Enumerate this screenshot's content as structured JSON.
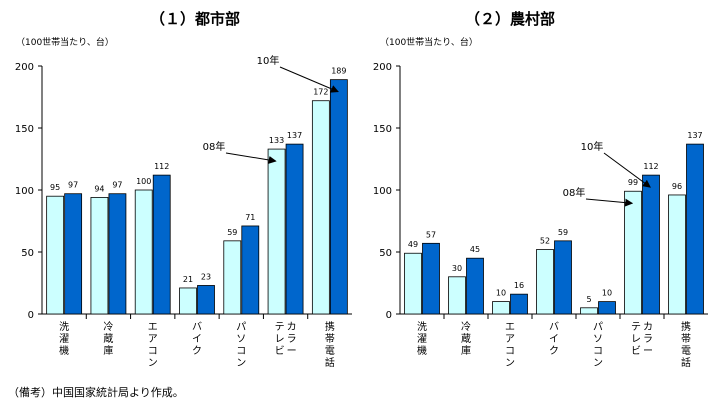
{
  "chart_data": [
    {
      "type": "bar",
      "title": "（１）都市部",
      "unit": "（100世帯当たり、台）",
      "categories": [
        "洗濯機",
        "冷蔵庫",
        "エアコン",
        "バイク",
        "パソコン",
        "カラーテレビ",
        "携帯電話"
      ],
      "series": [
        {
          "name": "08年",
          "values": [
            95,
            94,
            100,
            21,
            59,
            133,
            172
          ],
          "color": "#ccffff"
        },
        {
          "name": "10年",
          "values": [
            97,
            97,
            112,
            23,
            71,
            137,
            189
          ],
          "color": "#0066cc"
        }
      ],
      "ylim": [
        0,
        200
      ],
      "yticks": [
        0,
        50,
        100,
        150,
        200
      ],
      "annotations": [
        {
          "text": "08年",
          "target_series": 0,
          "target_category": 5
        },
        {
          "text": "10年",
          "target_series": 1,
          "target_category": 6
        }
      ]
    },
    {
      "type": "bar",
      "title": "（２）農村部",
      "unit": "（100世帯当たり、台）",
      "categories": [
        "洗濯機",
        "冷蔵庫",
        "エアコン",
        "バイク",
        "パソコン",
        "カラーテレビ",
        "携帯電話"
      ],
      "series": [
        {
          "name": "08年",
          "values": [
            49,
            30,
            10,
            52,
            5,
            99,
            96
          ],
          "color": "#ccffff"
        },
        {
          "name": "10年",
          "values": [
            57,
            45,
            16,
            59,
            10,
            112,
            137
          ],
          "color": "#0066cc"
        }
      ],
      "ylim": [
        0,
        200
      ],
      "yticks": [
        0,
        50,
        100,
        150,
        200
      ],
      "annotations": [
        {
          "text": "08年",
          "target_series": 0,
          "target_category": 5
        },
        {
          "text": "10年",
          "target_series": 1,
          "target_category": 5
        }
      ]
    }
  ],
  "note": "（備考）中国国家統計局より作成。"
}
